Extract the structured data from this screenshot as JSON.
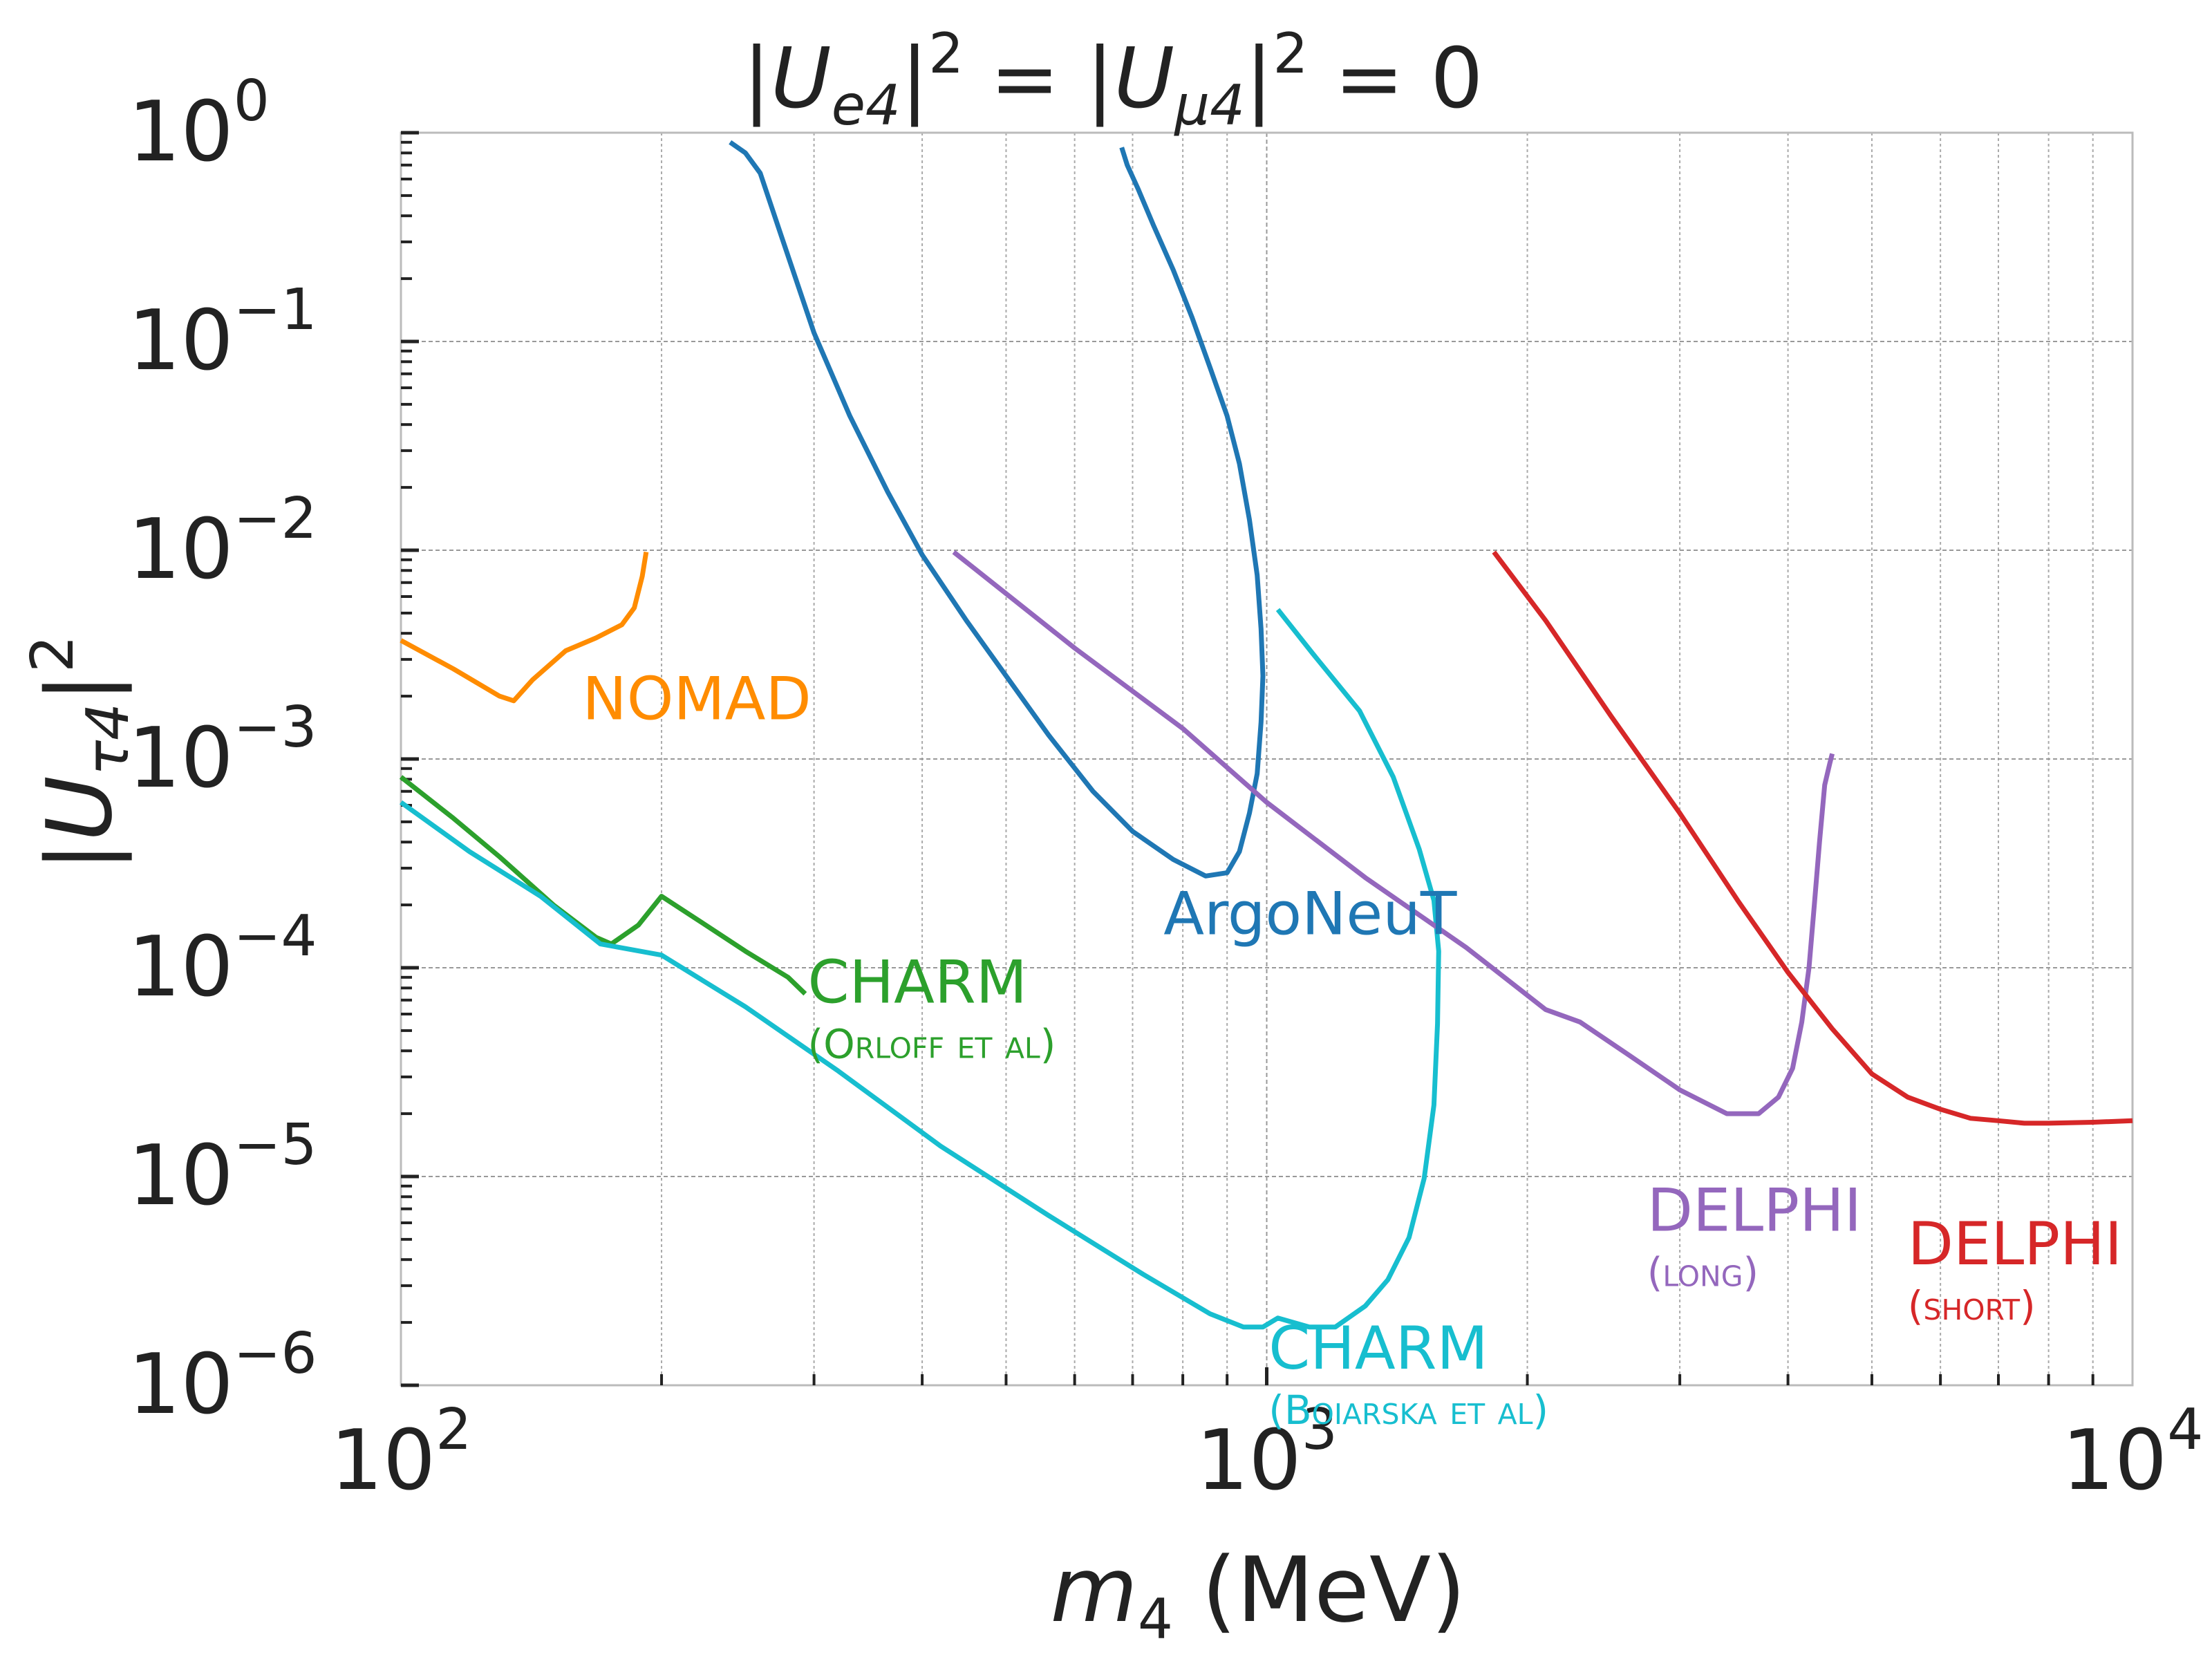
{
  "chart_data": {
    "type": "line",
    "title": "|U_e4|² = |U_μ4|² = 0",
    "title_parts": {
      "bar_left": "|",
      "u1": "U",
      "sub1": "e4",
      "bar_mid1": "|",
      "sup1": "2",
      "eq1": " = |",
      "u2": "U",
      "sub2": "μ4",
      "bar_mid2": "|",
      "sup2": "2",
      "eq2": " = 0"
    },
    "xlabel": "m₄ (MeV)",
    "xlabel_parts": {
      "m": "m",
      "sub": "4",
      "unit": " (MeV)"
    },
    "ylabel": "|U_τ4|²",
    "ylabel_parts": {
      "bar1": "|",
      "u": "U",
      "sub": "τ4",
      "bar2": "|",
      "sup": "2"
    },
    "x_scale": "log",
    "y_scale": "log",
    "xlim": [
      100,
      10000
    ],
    "ylim": [
      1e-06,
      1
    ],
    "grid": true,
    "x_ticks": [
      {
        "value": 100,
        "base": "10",
        "exp": "2"
      },
      {
        "value": 1000,
        "base": "10",
        "exp": "3"
      },
      {
        "value": 10000,
        "base": "10",
        "exp": "4"
      }
    ],
    "y_ticks": [
      {
        "value": 1,
        "base": "10",
        "exp": "0"
      },
      {
        "value": 0.1,
        "base": "10",
        "exp": "−1"
      },
      {
        "value": 0.01,
        "base": "10",
        "exp": "−2"
      },
      {
        "value": 0.001,
        "base": "10",
        "exp": "−3"
      },
      {
        "value": 0.0001,
        "base": "10",
        "exp": "−4"
      },
      {
        "value": 1e-05,
        "base": "10",
        "exp": "−5"
      },
      {
        "value": 1e-06,
        "base": "10",
        "exp": "−6"
      }
    ],
    "series": [
      {
        "name": "NOMAD",
        "color": "#ff8c00",
        "label_lines": [
          "NOMAD"
        ],
        "label_at": [
          162,
          0.00155
        ],
        "x": [
          100,
          115,
          130,
          135,
          142,
          155,
          168,
          180,
          186,
          190,
          192
        ],
        "y": [
          0.0037,
          0.0027,
          0.002,
          0.0019,
          0.0024,
          0.0033,
          0.0038,
          0.0044,
          0.0053,
          0.0075,
          0.0098
        ]
      },
      {
        "name": "CHARM",
        "color": "#2ca02c",
        "label_lines": [
          "CHARM",
          "(Orloff et al)"
        ],
        "label_at": [
          295,
          6.8e-05
        ],
        "x": [
          100,
          115,
          130,
          150,
          168,
          175,
          188,
          200,
          220,
          250,
          280,
          293
        ],
        "y": [
          0.00082,
          0.00052,
          0.00034,
          0.0002,
          0.00014,
          0.00013,
          0.00016,
          0.00022,
          0.00017,
          0.00012,
          9e-05,
          7.5e-05
        ]
      },
      {
        "name": "CHARM",
        "color": "#17becf",
        "label_lines": [
          "CHARM",
          "(Boiarska et al)"
        ],
        "label_at": [
          1005,
          1.2e-06
        ],
        "x": [
          100,
          120,
          145,
          170,
          200,
          250,
          320,
          420,
          560,
          720,
          860,
          940,
          990,
          1030,
          1120,
          1200,
          1300,
          1380,
          1460,
          1520,
          1560,
          1575,
          1580,
          1560,
          1500,
          1400,
          1280,
          1130,
          1030
        ],
        "y": [
          0.00062,
          0.00036,
          0.00022,
          0.00013,
          0.000115,
          6.5e-05,
          3.2e-05,
          1.4e-05,
          6.5e-06,
          3.4e-06,
          2.2e-06,
          1.9e-06,
          1.9e-06,
          2.1e-06,
          1.9e-06,
          1.9e-06,
          2.4e-06,
          3.2e-06,
          5.1e-06,
          9.8e-06,
          2.2e-05,
          5.4e-05,
          0.00012,
          0.00021,
          0.00037,
          0.00082,
          0.0017,
          0.0032,
          0.0052
        ]
      },
      {
        "name": "ArgoNeuT",
        "color": "#1f77b4",
        "label_lines": [
          "ArgoNeuT"
        ],
        "label_at": [
          760,
          0.000145
        ],
        "x": [
          240,
          250,
          260,
          275,
          300,
          330,
          365,
          400,
          450,
          500,
          560,
          630,
          700,
          780,
          850,
          900,
          930,
          955,
          975,
          985,
          990,
          985,
          975,
          955,
          930,
          900,
          860,
          820,
          780,
          740,
          710,
          690,
          680
        ],
        "y": [
          0.9,
          0.8,
          0.64,
          0.32,
          0.11,
          0.044,
          0.019,
          0.0095,
          0.0046,
          0.0025,
          0.0013,
          0.0007,
          0.00045,
          0.00033,
          0.000275,
          0.000285,
          0.00036,
          0.00055,
          0.00085,
          0.0015,
          0.0025,
          0.0042,
          0.0076,
          0.014,
          0.026,
          0.044,
          0.075,
          0.13,
          0.22,
          0.36,
          0.54,
          0.7,
          0.85
        ]
      },
      {
        "name": "DELPHI",
        "color": "#9467bd",
        "label_lines": [
          "DELPHI",
          "(long)"
        ],
        "label_at": [
          2750,
          5.5e-06
        ],
        "x": [
          435,
          600,
          800,
          1000,
          1300,
          1700,
          2100,
          2300,
          2600,
          3000,
          3400,
          3700,
          3900,
          4050,
          4150,
          4230,
          4290,
          4350,
          4410,
          4470,
          4500
        ],
        "y": [
          0.0098,
          0.0034,
          0.0014,
          0.00062,
          0.00027,
          0.000125,
          6.3e-05,
          5.5e-05,
          3.9e-05,
          2.6e-05,
          2e-05,
          2e-05,
          2.4e-05,
          3.3e-05,
          5.5e-05,
          0.0001,
          0.0002,
          0.0004,
          0.00075,
          0.00095,
          0.00106
        ]
      },
      {
        "name": "DELPHI",
        "color": "#d62728",
        "label_lines": [
          "DELPHI",
          "(short)"
        ],
        "label_at": [
          5500,
          3.8e-06
        ],
        "x": [
          1830,
          2100,
          2500,
          3000,
          3500,
          4000,
          4500,
          5000,
          5500,
          6000,
          6500,
          7000,
          7500,
          8000,
          9000,
          10000
        ],
        "y": [
          0.0098,
          0.0046,
          0.0016,
          0.00055,
          0.00021,
          9.5e-05,
          5.1e-05,
          3.1e-05,
          2.4e-05,
          2.1e-05,
          1.9e-05,
          1.85e-05,
          1.8e-05,
          1.8e-05,
          1.82e-05,
          1.85e-05
        ]
      }
    ]
  }
}
